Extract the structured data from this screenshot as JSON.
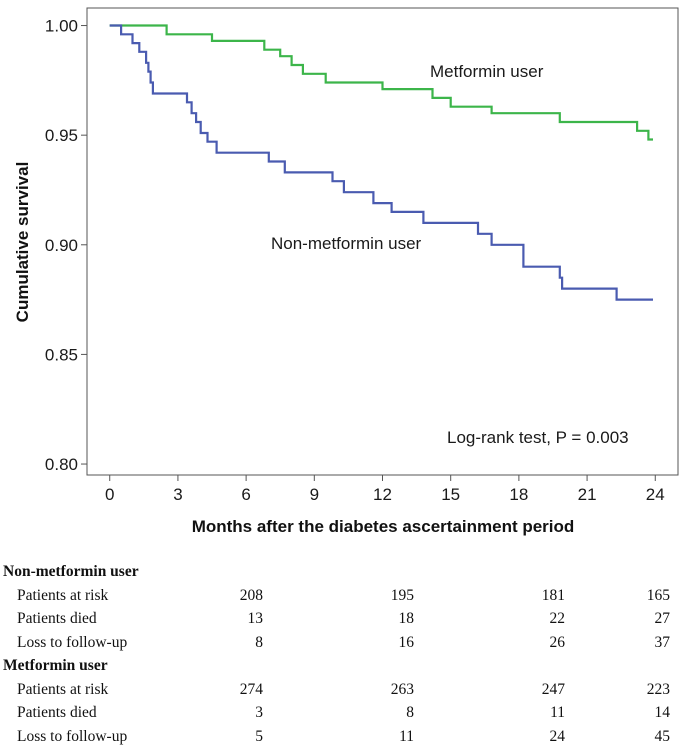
{
  "chart_data": {
    "type": "line",
    "title": "",
    "xlabel": "Months after the diabetes ascertainment period",
    "ylabel": "Cumulative survival",
    "xlim": [
      -1,
      25
    ],
    "ylim": [
      0.795,
      1.008
    ],
    "xticks": [
      0,
      3,
      6,
      9,
      12,
      15,
      18,
      21,
      24
    ],
    "xtick_labels": [
      "0",
      "3",
      "6",
      "9",
      "12",
      "15",
      "18",
      "21",
      "24"
    ],
    "yticks": [
      0.8,
      0.85,
      0.9,
      0.95,
      1.0
    ],
    "ytick_labels": [
      "0.80",
      "0.85",
      "0.90",
      "0.95",
      "1.00"
    ],
    "series": [
      {
        "name": "Metformin user",
        "color": "#3cb54a",
        "step": true,
        "x": [
          0,
          2.5,
          4.5,
          6.8,
          7.5,
          8,
          8.5,
          9.5,
          12,
          14.2,
          15,
          16.8,
          19.8,
          23.2,
          23.7,
          23.9
        ],
        "y": [
          1.0,
          0.996,
          0.993,
          0.989,
          0.986,
          0.982,
          0.978,
          0.974,
          0.971,
          0.967,
          0.963,
          0.96,
          0.956,
          0.952,
          0.948,
          0.948
        ]
      },
      {
        "name": "Non-metformin user",
        "color": "#4a5bb0",
        "step": true,
        "x": [
          0,
          0.5,
          1,
          1.3,
          1.6,
          1.7,
          1.8,
          1.9,
          3.4,
          3.6,
          3.8,
          4,
          4.3,
          4.7,
          5.3,
          6,
          6.5,
          7,
          7.7,
          8.2,
          9.8,
          10.3,
          11.6,
          12.4,
          13.8,
          15.5,
          16.2,
          16.8,
          18.2,
          19.8,
          19.9,
          22.3,
          23.9
        ],
        "y": [
          1.0,
          0.996,
          0.992,
          0.988,
          0.983,
          0.979,
          0.974,
          0.969,
          0.965,
          0.96,
          0.956,
          0.951,
          0.947,
          0.942,
          0.942,
          0.942,
          0.942,
          0.938,
          0.933,
          0.933,
          0.929,
          0.924,
          0.919,
          0.915,
          0.91,
          0.91,
          0.905,
          0.9,
          0.89,
          0.885,
          0.88,
          0.875,
          0.875
        ]
      }
    ],
    "annotations": [
      "Metformin user",
      "Non-metformin user",
      "Log-rank test, P = 0.003"
    ]
  },
  "risk_table": {
    "groups": [
      {
        "title": "Non-metformin user",
        "rows": [
          {
            "label": "Patients at risk",
            "values": [
              "208",
              "195",
              "181",
              "165"
            ]
          },
          {
            "label": "Patients died",
            "values": [
              "13",
              "18",
              "22",
              "27"
            ]
          },
          {
            "label": "Loss to follow-up",
            "values": [
              "8",
              "16",
              "26",
              "37"
            ]
          }
        ]
      },
      {
        "title": "Metformin user",
        "rows": [
          {
            "label": "Patients at risk",
            "values": [
              "274",
              "263",
              "247",
              "223"
            ]
          },
          {
            "label": "Patients died",
            "values": [
              "3",
              "8",
              "11",
              "14"
            ]
          },
          {
            "label": "Loss to follow-up",
            "values": [
              "5",
              "11",
              "24",
              "45"
            ]
          }
        ]
      }
    ]
  }
}
